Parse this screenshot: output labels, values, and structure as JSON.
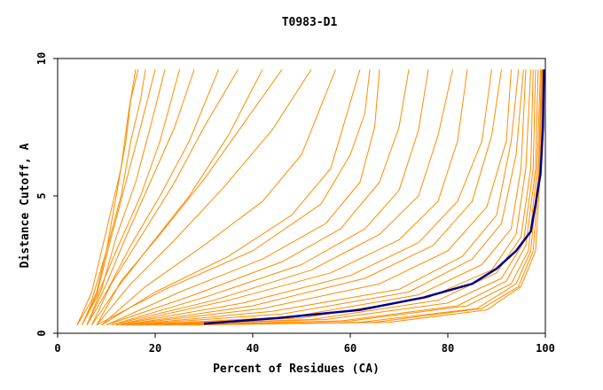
{
  "chart_data": {
    "type": "line",
    "title": "T0983-D1",
    "xlabel": "Percent of Residues (CA)",
    "ylabel": "Distance Cutoff, A",
    "xlim": [
      0,
      100
    ],
    "ylim": [
      0,
      10
    ],
    "x_ticks": [
      {
        "value": 0,
        "label": "0"
      },
      {
        "value": 20,
        "label": "20"
      },
      {
        "value": 40,
        "label": "40"
      },
      {
        "value": 60,
        "label": "60"
      },
      {
        "value": 80,
        "label": "80"
      },
      {
        "value": 100,
        "label": "100"
      }
    ],
    "y_ticks": [
      {
        "value": 0,
        "label": "0"
      },
      {
        "value": 5,
        "label": "5"
      },
      {
        "value": 10,
        "label": "10"
      }
    ],
    "colors": {
      "models": "#ff8c00",
      "highlight": "#00008b",
      "frame": "#000000"
    },
    "highlight_series": {
      "values": [
        [
          30,
          0.35
        ],
        [
          45,
          0.55
        ],
        [
          62,
          0.85
        ],
        [
          75,
          1.3
        ],
        [
          85,
          1.8
        ],
        [
          90,
          2.35
        ],
        [
          94,
          3.0
        ],
        [
          97,
          3.7
        ],
        [
          98,
          4.7
        ],
        [
          99,
          5.8
        ],
        [
          99.5,
          7.5
        ],
        [
          99.7,
          9.6
        ]
      ]
    },
    "model_series": [
      {
        "values": [
          [
            4,
            0.3
          ],
          [
            7,
            1.5
          ],
          [
            9,
            3
          ],
          [
            11,
            4.5
          ],
          [
            13,
            6
          ],
          [
            14.5,
            8
          ],
          [
            16,
            9.6
          ]
        ]
      },
      {
        "values": [
          [
            5,
            0.3
          ],
          [
            8,
            1.5
          ],
          [
            10,
            3
          ],
          [
            12,
            5
          ],
          [
            14,
            7
          ],
          [
            15,
            8.5
          ],
          [
            16.5,
            9.6
          ]
        ]
      },
      {
        "values": [
          [
            4,
            0.3
          ],
          [
            7,
            1.2
          ],
          [
            10,
            3
          ],
          [
            13,
            5
          ],
          [
            15,
            7
          ],
          [
            17,
            8.5
          ],
          [
            18,
            9.6
          ]
        ]
      },
      {
        "values": [
          [
            5,
            0.3
          ],
          [
            8,
            1.4
          ],
          [
            11,
            3.5
          ],
          [
            14,
            5.5
          ],
          [
            17,
            7.5
          ],
          [
            20,
            9.6
          ]
        ]
      },
      {
        "values": [
          [
            6,
            0.3
          ],
          [
            9,
            1.6
          ],
          [
            12,
            3.5
          ],
          [
            16,
            5.5
          ],
          [
            19,
            7.5
          ],
          [
            22,
            9.6
          ]
        ]
      },
      {
        "values": [
          [
            5,
            0.3
          ],
          [
            8,
            1.3
          ],
          [
            12,
            3
          ],
          [
            17,
            5
          ],
          [
            21,
            7
          ],
          [
            25,
            9.6
          ]
        ]
      },
      {
        "values": [
          [
            6,
            0.3
          ],
          [
            10,
            1.8
          ],
          [
            14,
            3.5
          ],
          [
            19,
            5.5
          ],
          [
            24,
            7.5
          ],
          [
            28,
            9.6
          ]
        ]
      },
      {
        "values": [
          [
            6,
            0.3
          ],
          [
            10,
            1.5
          ],
          [
            15,
            3.2
          ],
          [
            21,
            5
          ],
          [
            27,
            7
          ],
          [
            33,
            9.6
          ]
        ]
      },
      {
        "values": [
          [
            7,
            0.3
          ],
          [
            11,
            1.8
          ],
          [
            17,
            3.5
          ],
          [
            24,
            5.5
          ],
          [
            30,
            7.5
          ],
          [
            37,
            9.6
          ]
        ]
      },
      {
        "values": [
          [
            7,
            0.3
          ],
          [
            12,
            1.6
          ],
          [
            19,
            3.2
          ],
          [
            27,
            5
          ],
          [
            35,
            7.2
          ],
          [
            42,
            9.6
          ]
        ]
      },
      {
        "values": [
          [
            8,
            0.3
          ],
          [
            13,
            1.9
          ],
          [
            21,
            3.6
          ],
          [
            30,
            5.6
          ],
          [
            38,
            7.6
          ],
          [
            46,
            9.6
          ]
        ]
      },
      {
        "values": [
          [
            8,
            0.3
          ],
          [
            15,
            1.8
          ],
          [
            24,
            3.4
          ],
          [
            34,
            5.3
          ],
          [
            44,
            7.4
          ],
          [
            52,
            9.6
          ]
        ]
      },
      {
        "values": [
          [
            9,
            0.3
          ],
          [
            18,
            1.7
          ],
          [
            30,
            3.2
          ],
          [
            42,
            4.8
          ],
          [
            50,
            6.5
          ],
          [
            57,
            9.6
          ]
        ]
      },
      {
        "values": [
          [
            9,
            0.3
          ],
          [
            20,
            1.5
          ],
          [
            35,
            2.8
          ],
          [
            48,
            4.3
          ],
          [
            56,
            6
          ],
          [
            62,
            9.6
          ]
        ]
      },
      {
        "values": [
          [
            8,
            0.3
          ],
          [
            22,
            1.6
          ],
          [
            40,
            3
          ],
          [
            54,
            4.7
          ],
          [
            60,
            6.5
          ],
          [
            63,
            8
          ],
          [
            64,
            9.6
          ]
        ]
      },
      {
        "values": [
          [
            10,
            0.3
          ],
          [
            25,
            1.5
          ],
          [
            42,
            2.7
          ],
          [
            55,
            4
          ],
          [
            62,
            5.5
          ],
          [
            65,
            7.5
          ],
          [
            66,
            9.6
          ]
        ]
      },
      {
        "values": [
          [
            10,
            0.3
          ],
          [
            28,
            1.4
          ],
          [
            46,
            2.6
          ],
          [
            58,
            3.8
          ],
          [
            66,
            5.5
          ],
          [
            70,
            7.5
          ],
          [
            72,
            9.6
          ]
        ]
      },
      {
        "values": [
          [
            11,
            0.3
          ],
          [
            30,
            1.3
          ],
          [
            50,
            2.5
          ],
          [
            63,
            3.8
          ],
          [
            70,
            5.2
          ],
          [
            74,
            7.4
          ],
          [
            76,
            9.6
          ]
        ]
      },
      {
        "values": [
          [
            11,
            0.3
          ],
          [
            32,
            1.2
          ],
          [
            52,
            2.3
          ],
          [
            66,
            3.6
          ],
          [
            74,
            5
          ],
          [
            78,
            7.2
          ],
          [
            81,
            9.6
          ]
        ]
      },
      {
        "values": [
          [
            12,
            0.3
          ],
          [
            35,
            1.2
          ],
          [
            56,
            2.2
          ],
          [
            70,
            3.4
          ],
          [
            78,
            4.8
          ],
          [
            82,
            7
          ],
          [
            84,
            9.6
          ]
        ]
      },
      {
        "values": [
          [
            12,
            0.3
          ],
          [
            38,
            1.1
          ],
          [
            60,
            2.1
          ],
          [
            74,
            3.3
          ],
          [
            82,
            4.8
          ],
          [
            87,
            7
          ],
          [
            89,
            9.6
          ]
        ]
      },
      {
        "values": [
          [
            13,
            0.3
          ],
          [
            40,
            1
          ],
          [
            63,
            2
          ],
          [
            77,
            3.2
          ],
          [
            85,
            4.8
          ],
          [
            89,
            7.2
          ],
          [
            91,
            9.6
          ]
        ]
      },
      {
        "values": [
          [
            13,
            0.3
          ],
          [
            42,
            0.9
          ],
          [
            66,
            1.8
          ],
          [
            80,
            3
          ],
          [
            88,
            4.6
          ],
          [
            92,
            7
          ],
          [
            93,
            9.6
          ]
        ]
      },
      {
        "values": [
          [
            14,
            0.3
          ],
          [
            44,
            0.8
          ],
          [
            70,
            1.6
          ],
          [
            83,
            2.8
          ],
          [
            90,
            4.3
          ],
          [
            93,
            7
          ],
          [
            94.5,
            9.6
          ]
        ]
      },
      {
        "values": [
          [
            14,
            0.3
          ],
          [
            46,
            0.7
          ],
          [
            72,
            1.5
          ],
          [
            85,
            2.7
          ],
          [
            91,
            4
          ],
          [
            94,
            6.5
          ],
          [
            95.5,
            9.6
          ]
        ]
      },
      {
        "values": [
          [
            15,
            0.3
          ],
          [
            48,
            0.6
          ],
          [
            74,
            1.4
          ],
          [
            87,
            2.5
          ],
          [
            93,
            3.8
          ],
          [
            95,
            6
          ],
          [
            96,
            9.6
          ]
        ]
      },
      {
        "values": [
          [
            15,
            0.3
          ],
          [
            50,
            0.55
          ],
          [
            76,
            1.3
          ],
          [
            89,
            2.3
          ],
          [
            94,
            3.6
          ],
          [
            96,
            6
          ],
          [
            97,
            9.6
          ]
        ]
      },
      {
        "values": [
          [
            16,
            0.3
          ],
          [
            52,
            0.5
          ],
          [
            78,
            1.2
          ],
          [
            90,
            2.2
          ],
          [
            95,
            3.5
          ],
          [
            97,
            6
          ],
          [
            97.5,
            9.6
          ]
        ]
      },
      {
        "values": [
          [
            17,
            0.3
          ],
          [
            55,
            0.5
          ],
          [
            80,
            1.1
          ],
          [
            91,
            2
          ],
          [
            95.5,
            3.3
          ],
          [
            97.5,
            6
          ],
          [
            98,
            9.6
          ]
        ]
      },
      {
        "values": [
          [
            18,
            0.3
          ],
          [
            58,
            0.45
          ],
          [
            82,
            1
          ],
          [
            92,
            1.9
          ],
          [
            96,
            3.2
          ],
          [
            98,
            6
          ],
          [
            98.5,
            9.6
          ]
        ]
      },
      {
        "values": [
          [
            20,
            0.3
          ],
          [
            60,
            0.45
          ],
          [
            84,
            1
          ],
          [
            93,
            1.8
          ],
          [
            96.5,
            3
          ],
          [
            98.3,
            6
          ],
          [
            99,
            9.6
          ]
        ]
      },
      {
        "values": [
          [
            22,
            0.3
          ],
          [
            62,
            0.4
          ],
          [
            86,
            0.9
          ],
          [
            94,
            1.8
          ],
          [
            97,
            3
          ],
          [
            98.6,
            6
          ],
          [
            99.2,
            9.6
          ]
        ]
      },
      {
        "values": [
          [
            25,
            0.3
          ],
          [
            65,
            0.4
          ],
          [
            87,
            0.9
          ],
          [
            94.5,
            1.7
          ],
          [
            97.5,
            3
          ],
          [
            98.8,
            6
          ],
          [
            99.3,
            9.6
          ]
        ]
      },
      {
        "values": [
          [
            27,
            0.3
          ],
          [
            68,
            0.4
          ],
          [
            88,
            0.85
          ],
          [
            95,
            1.7
          ],
          [
            98,
            3
          ],
          [
            99,
            6
          ],
          [
            99.4,
            9.6
          ]
        ]
      }
    ]
  }
}
